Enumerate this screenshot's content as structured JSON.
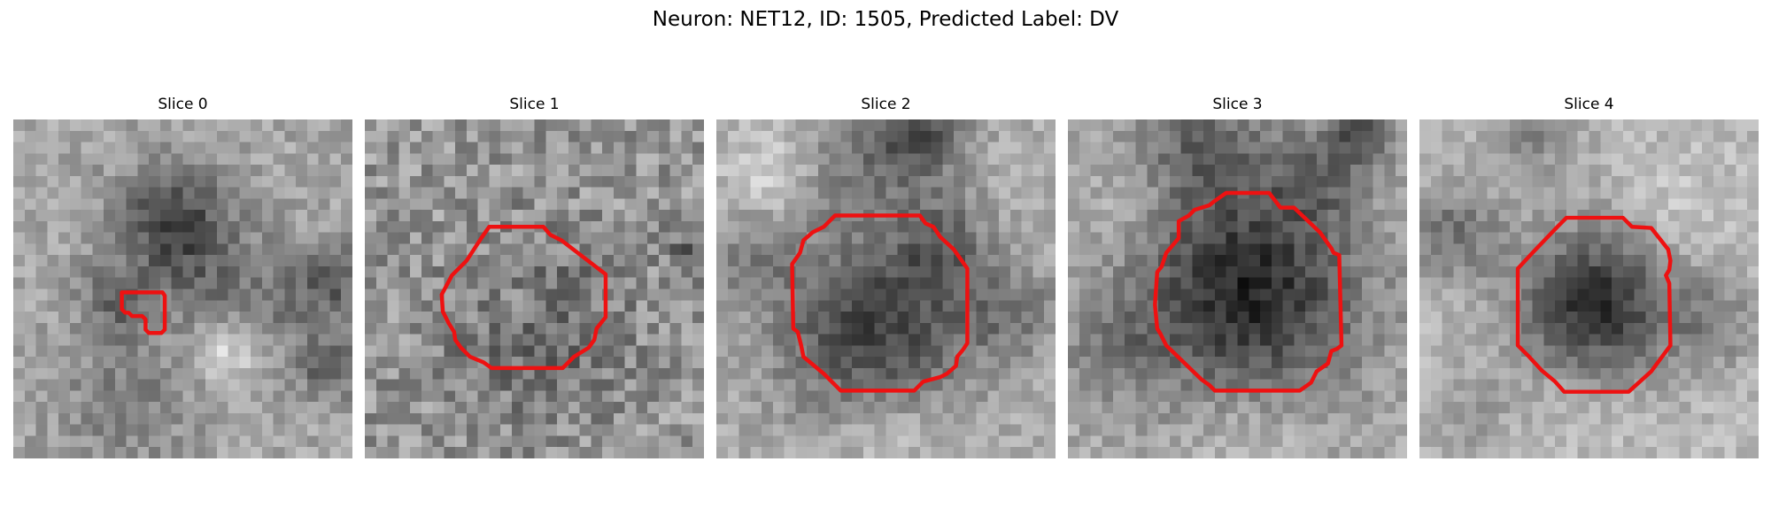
{
  "figure": {
    "title": "Neuron: NET12, ID: 1505, Predicted Label: DV",
    "contour_color": "#ee1111",
    "colormap": "gray",
    "grid_size": 30
  },
  "slices": [
    {
      "title": "Slice 0",
      "contour_shape": "small irregular blob, left of centre"
    },
    {
      "title": "Slice 1",
      "contour_shape": "large rounded polygon, centre"
    },
    {
      "title": "Slice 2",
      "contour_shape": "large rounded polygon, centre"
    },
    {
      "title": "Slice 3",
      "contour_shape": "large rounded polygon around dark soma"
    },
    {
      "title": "Slice 4",
      "contour_shape": "rounded octagon around dark soma"
    }
  ]
}
